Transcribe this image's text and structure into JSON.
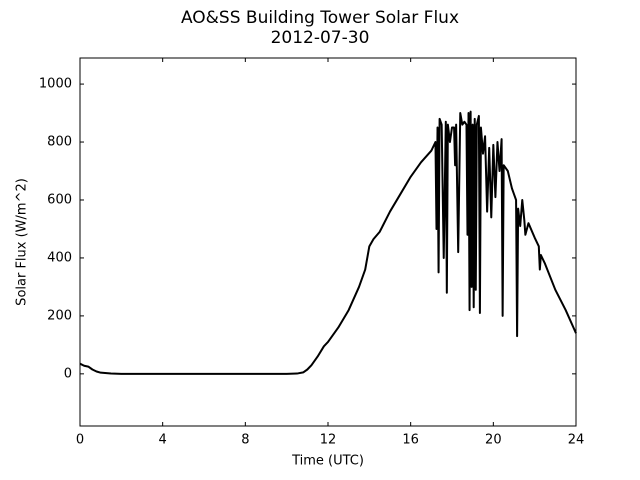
{
  "chart_data": {
    "type": "line",
    "title": "AO&SS Building Tower Solar Flux",
    "subtitle": "2012-07-30",
    "x_label": "Time (UTC)",
    "y_label": "Solar Flux (W/m^2)",
    "color": "#000000",
    "x": [
      0,
      0.2,
      0.4,
      0.6,
      0.8,
      1.0,
      1.5,
      2,
      3,
      4,
      5,
      6,
      7,
      8,
      9,
      10,
      10.5,
      10.8,
      11,
      11.2,
      11.5,
      11.8,
      12,
      12.5,
      13,
      13.5,
      13.8,
      14,
      14.2,
      14.5,
      15,
      15.5,
      16,
      16.5,
      17,
      17.2,
      17.25,
      17.3,
      17.35,
      17.4,
      17.5,
      17.6,
      17.7,
      17.75,
      17.8,
      17.9,
      18,
      18.1,
      18.15,
      18.2,
      18.3,
      18.4,
      18.5,
      18.6,
      18.7,
      18.75,
      18.8,
      18.85,
      18.9,
      18.95,
      19,
      19.05,
      19.1,
      19.15,
      19.2,
      19.3,
      19.35,
      19.4,
      19.5,
      19.6,
      19.7,
      19.8,
      19.9,
      20,
      20.1,
      20.2,
      20.3,
      20.4,
      20.45,
      20.5,
      20.7,
      20.9,
      21,
      21.1,
      21.15,
      21.2,
      21.3,
      21.4,
      21.5,
      21.55,
      21.7,
      22,
      22.2,
      22.25,
      22.3,
      22.5,
      23,
      23.5,
      24
    ],
    "values": [
      35,
      28,
      25,
      15,
      8,
      4,
      1,
      0,
      0,
      0,
      0,
      0,
      0,
      0,
      0,
      0,
      1,
      5,
      15,
      30,
      60,
      95,
      110,
      160,
      220,
      300,
      360,
      440,
      465,
      490,
      560,
      620,
      680,
      730,
      770,
      800,
      500,
      850,
      350,
      880,
      860,
      400,
      870,
      280,
      860,
      800,
      850,
      850,
      720,
      860,
      420,
      900,
      860,
      870,
      860,
      480,
      900,
      220,
      905,
      300,
      860,
      230,
      880,
      290,
      860,
      890,
      210,
      850,
      760,
      820,
      560,
      780,
      540,
      790,
      610,
      800,
      700,
      810,
      200,
      720,
      700,
      640,
      620,
      600,
      130,
      570,
      510,
      600,
      530,
      480,
      520,
      470,
      440,
      360,
      410,
      380,
      290,
      220,
      140
    ],
    "xlim": [
      0,
      24
    ],
    "xticks": [
      0,
      4,
      8,
      12,
      16,
      20,
      24
    ],
    "ylim": [
      -180,
      1090
    ],
    "yticks": [
      0,
      200,
      400,
      600,
      800,
      1000
    ],
    "grid": false
  }
}
